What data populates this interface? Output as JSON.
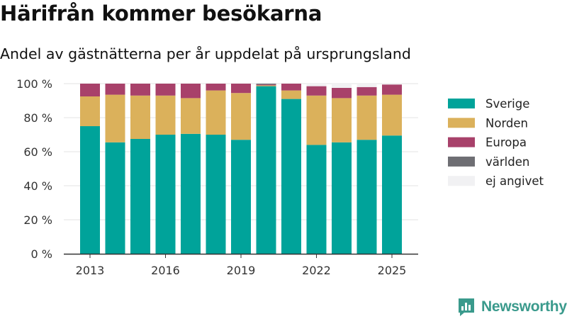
{
  "title": "Härifrån kommer besökarna",
  "subtitle": "Andel av gästnätterna per år uppdelat på ursprungsland",
  "brand": {
    "name": "Newsworthy",
    "color": "#3a9a8c"
  },
  "chart_data": {
    "type": "bar",
    "stacked": true,
    "categories": [
      "2013",
      "2014",
      "2015",
      "2016",
      "2017",
      "2018",
      "2019",
      "2020",
      "2021",
      "2022",
      "2023",
      "2024",
      "2025"
    ],
    "x_tick_labels": [
      "2013",
      "2016",
      "2019",
      "2022",
      "2025"
    ],
    "series": [
      {
        "name": "Sverige",
        "color": "#00a39a",
        "values": [
          75,
          65.5,
          67.5,
          70,
          70.5,
          70,
          67,
          98.5,
          91,
          64,
          65.5,
          67,
          69.5
        ]
      },
      {
        "name": "Norden",
        "color": "#dbb15b",
        "values": [
          17.5,
          28,
          25.5,
          23,
          21,
          26,
          27.5,
          0.5,
          5,
          29,
          26,
          26,
          24
        ]
      },
      {
        "name": "Europa",
        "color": "#a8416a",
        "values": [
          7.5,
          6.5,
          7,
          7,
          8.5,
          4,
          5.5,
          0.5,
          4,
          5.5,
          6,
          5,
          6
        ]
      },
      {
        "name": "världen",
        "color": "#6e6e73",
        "values": [
          0,
          0,
          0,
          0,
          0,
          0,
          0,
          0.5,
          0,
          0,
          0,
          0,
          0
        ]
      },
      {
        "name": "ej angivet",
        "color": "#f1f1f3",
        "values": [
          0,
          0,
          0,
          0,
          0,
          0,
          0,
          0,
          0,
          1.5,
          2.5,
          2,
          0.5
        ]
      }
    ],
    "y_ticks": [
      0,
      20,
      40,
      60,
      80,
      100
    ],
    "y_tick_labels": [
      "0 %",
      "20 %",
      "40 %",
      "60 %",
      "80 %",
      "100 %"
    ],
    "ylim": [
      0,
      100
    ],
    "xlabel": "",
    "ylabel": "",
    "grid": true,
    "legend_position": "right"
  }
}
